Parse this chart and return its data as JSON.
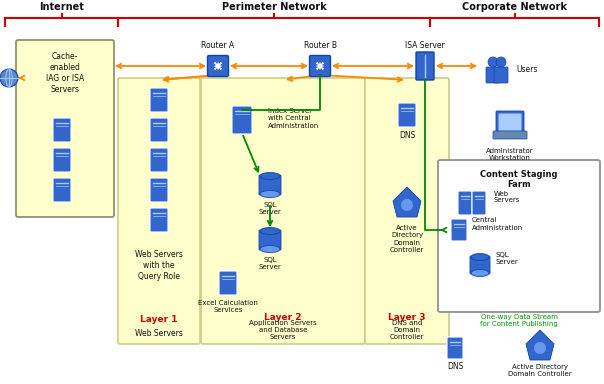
{
  "bg_color": "#ffffff",
  "section_labels": {
    "internet": "Internet",
    "perimeter": "Perimeter Network",
    "corporate": "Corporate Network"
  },
  "brace_color": "#cc0000",
  "layer_box_color": "#ffffcc",
  "layer_box_edge": "#cccc88",
  "cache_box_color": "#ffffcc",
  "cache_box_edge": "#888866",
  "content_staging_box_color": "#ffffff",
  "content_staging_box_edge": "#888888",
  "orange_arrow_color": "#ff8800",
  "green_arrow_color": "#008800",
  "red_label_color": "#cc0000",
  "green_label_color": "#009900",
  "black_text_color": "#111111",
  "icon_color": "#3366cc",
  "icon_light": "#6699ee",
  "icon_edge": "#1144aa"
}
